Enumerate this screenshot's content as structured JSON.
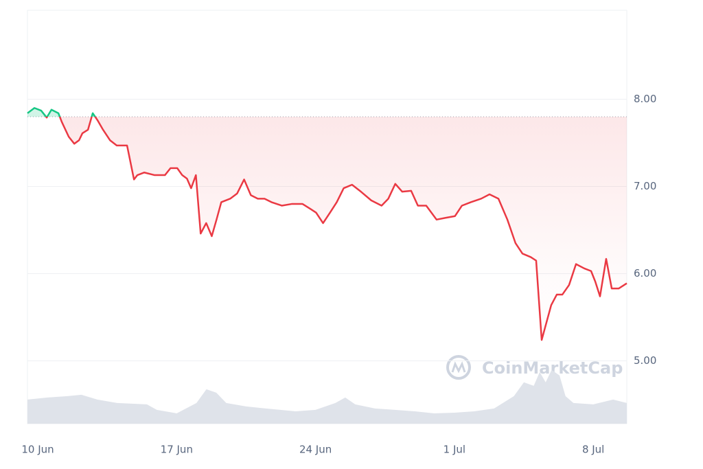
{
  "chart_data": {
    "type": "line",
    "watermark": "CoinMarketCap",
    "x": [
      -0.52,
      -0.17,
      0.17,
      0.45,
      0.69,
      1.04,
      1.21,
      1.56,
      1.84,
      2.08,
      2.25,
      2.53,
      2.77,
      3.01,
      3.29,
      3.64,
      3.98,
      4.5,
      4.85,
      5.02,
      5.37,
      5.89,
      6.41,
      6.69,
      7.03,
      7.28,
      7.52,
      7.73,
      7.97,
      8.21,
      8.49,
      8.77,
      9.01,
      9.25,
      9.7,
      10.05,
      10.4,
      10.74,
      11.09,
      11.43,
      11.78,
      12.3,
      12.82,
      13.34,
      13.76,
      14.03,
      14.38,
      14.73,
      15.07,
      15.42,
      15.84,
      16.29,
      16.81,
      17.33,
      17.67,
      18.02,
      18.37,
      18.82,
      19.16,
      19.58,
      20.1,
      20.55,
      21.03,
      21.38,
      21.83,
      22.35,
      22.77,
      23.22,
      23.67,
      24.08,
      24.43,
      24.85,
      25.12,
      25.4,
      25.64,
      25.88,
      26.16,
      26.44,
      26.78,
      27.13,
      27.55,
      27.89,
      28.1,
      28.34,
      28.65,
      28.93,
      29.28,
      29.69
    ],
    "values": [
      7.84,
      7.9,
      7.87,
      7.79,
      7.88,
      7.84,
      7.74,
      7.57,
      7.49,
      7.53,
      7.61,
      7.65,
      7.84,
      7.76,
      7.65,
      7.53,
      7.47,
      7.47,
      7.08,
      7.13,
      7.16,
      7.13,
      7.13,
      7.21,
      7.21,
      7.13,
      7.09,
      6.98,
      7.13,
      6.46,
      6.58,
      6.43,
      6.62,
      6.82,
      6.86,
      6.92,
      7.08,
      6.9,
      6.86,
      6.86,
      6.82,
      6.78,
      6.8,
      6.8,
      6.74,
      6.7,
      6.58,
      6.7,
      6.82,
      6.98,
      7.02,
      6.94,
      6.84,
      6.78,
      6.86,
      7.03,
      6.94,
      6.95,
      6.78,
      6.78,
      6.62,
      6.64,
      6.66,
      6.78,
      6.82,
      6.86,
      6.91,
      6.86,
      6.62,
      6.35,
      6.23,
      6.19,
      6.15,
      5.24,
      5.44,
      5.64,
      5.76,
      5.76,
      5.87,
      6.11,
      6.06,
      6.03,
      5.91,
      5.74,
      6.17,
      5.83,
      5.83,
      5.89
    ],
    "baseline": 7.8,
    "color_up": "#16c784",
    "color_down": "#ea3943",
    "volume": {
      "x": [
        -0.52,
        0.5,
        1.5,
        2.2,
        3,
        4,
        5.5,
        6,
        7,
        8,
        8.5,
        9,
        9.5,
        10.5,
        11.5,
        13,
        14,
        15,
        15.5,
        16,
        17,
        18,
        19,
        20,
        21,
        22,
        23,
        24,
        24.5,
        25,
        25.3,
        25.6,
        25.9,
        26.3,
        26.6,
        27,
        28,
        29,
        29.69
      ],
      "values": [
        35,
        38,
        40,
        42,
        35,
        30,
        28,
        20,
        15,
        30,
        50,
        45,
        30,
        25,
        22,
        18,
        20,
        30,
        38,
        28,
        22,
        20,
        18,
        15,
        16,
        18,
        22,
        40,
        60,
        55,
        75,
        60,
        78,
        70,
        40,
        30,
        28,
        35,
        30
      ],
      "color": "#dfe3ea"
    },
    "xlim": [
      -0.52,
      29.69
    ],
    "xticks": [
      {
        "value": 0,
        "label": "10 Jun"
      },
      {
        "value": 7,
        "label": "17 Jun"
      },
      {
        "value": 14,
        "label": "24 Jun"
      },
      {
        "value": 21,
        "label": "1 Jul"
      },
      {
        "value": 28,
        "label": "8 Jul"
      }
    ],
    "ylim": [
      4.28,
      9.02
    ],
    "yticks": [
      {
        "value": 5,
        "label": "5.00"
      },
      {
        "value": 6,
        "label": "6.00"
      },
      {
        "value": 7,
        "label": "7.00"
      },
      {
        "value": 8,
        "label": "8.00"
      }
    ],
    "y2lim": [
      0,
      600
    ],
    "grid": true
  }
}
